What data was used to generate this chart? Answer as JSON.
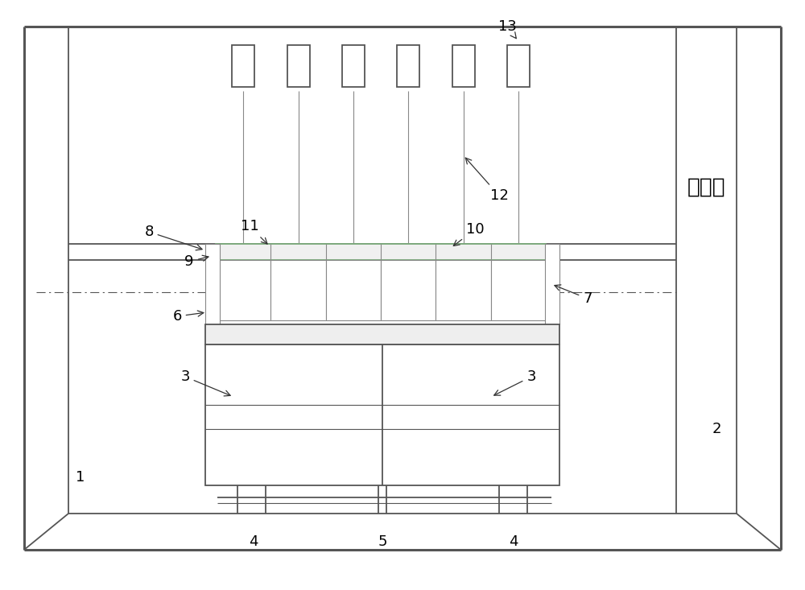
{
  "line_color": "#555555",
  "light_line_color": "#888888",
  "purple_line_color": "#9999cc",
  "fig_width": 10.0,
  "fig_height": 7.33,
  "control_room_text_cn": "控制室"
}
